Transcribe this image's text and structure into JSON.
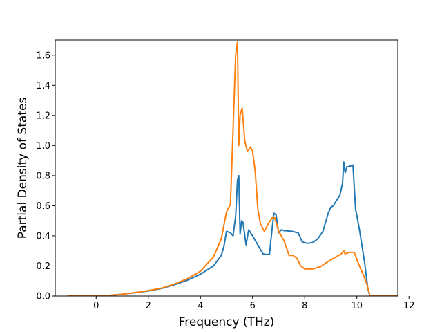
{
  "chart_data": {
    "type": "line",
    "title": "",
    "xlabel": "Frequency (THz)",
    "ylabel": "Partial Density of States",
    "xlim": [
      -1.57,
      11.57
    ],
    "ylim": [
      0,
      1.7
    ],
    "xticks": [
      0,
      2,
      4,
      6,
      8,
      10,
      12
    ],
    "xtick_labels": [
      "0",
      "2",
      "4",
      "6",
      "8",
      "10",
      "12"
    ],
    "yticks": [
      0.0,
      0.2,
      0.4,
      0.6,
      0.8,
      1.0,
      1.2,
      1.4,
      1.6
    ],
    "ytick_labels": [
      "0.0",
      "0.2",
      "0.4",
      "0.6",
      "0.8",
      "1.0",
      "1.2",
      "1.4",
      "1.6"
    ],
    "grid": false,
    "legend": "none",
    "series": [
      {
        "color": "#1f77b4",
        "x": [
          -1.1,
          0,
          0.5,
          1,
          1.5,
          2,
          2.5,
          3,
          3.5,
          4,
          4.5,
          4.8,
          4.9,
          5.0,
          5.15,
          5.25,
          5.35,
          5.42,
          5.47,
          5.52,
          5.58,
          5.63,
          5.75,
          5.85,
          6.0,
          6.2,
          6.4,
          6.55,
          6.65,
          6.75,
          6.82,
          6.9,
          7.0,
          7.1,
          7.2,
          7.5,
          7.75,
          7.9,
          8.1,
          8.3,
          8.5,
          8.7,
          8.9,
          9.0,
          9.1,
          9.2,
          9.35,
          9.45,
          9.5,
          9.55,
          9.62,
          9.7,
          9.85,
          9.95,
          10.1,
          10.3,
          10.42,
          10.5,
          11.55
        ],
        "y": [
          0,
          0,
          0.004,
          0.012,
          0.022,
          0.034,
          0.05,
          0.075,
          0.105,
          0.145,
          0.2,
          0.27,
          0.33,
          0.43,
          0.42,
          0.4,
          0.53,
          0.77,
          0.8,
          0.41,
          0.5,
          0.49,
          0.34,
          0.44,
          0.4,
          0.34,
          0.28,
          0.275,
          0.28,
          0.45,
          0.55,
          0.54,
          0.42,
          0.44,
          0.435,
          0.43,
          0.42,
          0.36,
          0.35,
          0.355,
          0.38,
          0.43,
          0.55,
          0.59,
          0.6,
          0.63,
          0.67,
          0.75,
          0.89,
          0.82,
          0.86,
          0.86,
          0.87,
          0.58,
          0.44,
          0.22,
          0.05,
          0,
          0
        ]
      },
      {
        "color": "#ff7f0e",
        "x": [
          -1.1,
          0,
          0.5,
          1,
          1.5,
          2,
          2.5,
          3,
          3.5,
          4,
          4.5,
          4.8,
          4.9,
          5.0,
          5.15,
          5.25,
          5.35,
          5.42,
          5.47,
          5.52,
          5.6,
          5.7,
          5.8,
          5.92,
          6.0,
          6.1,
          6.2,
          6.3,
          6.45,
          6.6,
          6.75,
          6.85,
          7.0,
          7.2,
          7.4,
          7.55,
          7.7,
          7.85,
          8.0,
          8.3,
          8.6,
          8.9,
          9.2,
          9.4,
          9.5,
          9.55,
          9.7,
          9.9,
          10.05,
          10.25,
          10.4,
          10.5,
          11.55
        ],
        "y": [
          0,
          0,
          0.004,
          0.012,
          0.023,
          0.036,
          0.052,
          0.08,
          0.115,
          0.165,
          0.26,
          0.38,
          0.47,
          0.56,
          0.61,
          1.1,
          1.6,
          1.69,
          1.0,
          1.2,
          1.25,
          1.03,
          0.96,
          0.99,
          0.96,
          0.83,
          0.58,
          0.48,
          0.43,
          0.48,
          0.52,
          0.52,
          0.43,
          0.37,
          0.27,
          0.27,
          0.25,
          0.2,
          0.18,
          0.18,
          0.195,
          0.23,
          0.26,
          0.28,
          0.3,
          0.28,
          0.29,
          0.29,
          0.22,
          0.14,
          0.07,
          0,
          0
        ]
      }
    ]
  }
}
